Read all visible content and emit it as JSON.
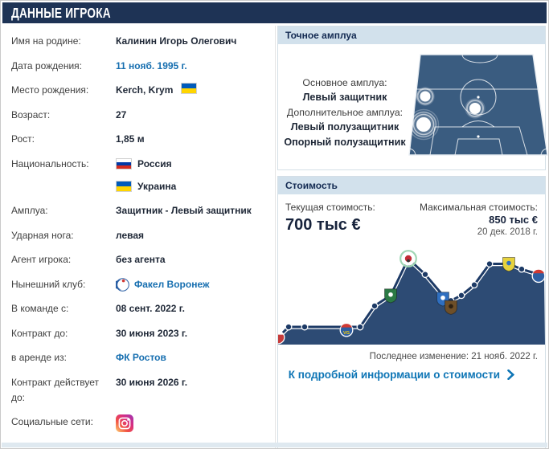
{
  "page": {
    "title": "Данные игрока"
  },
  "player_info": {
    "rows": [
      {
        "name": "name",
        "label": "Имя на родине:",
        "type": "text",
        "value": "Калинин Игорь Олегович"
      },
      {
        "name": "birth-date",
        "label": "Дата рождения:",
        "type": "link",
        "value": "11 нояб. 1995 г."
      },
      {
        "name": "birth-place",
        "label": "Место рождения:",
        "type": "place",
        "value": "Kerch, Krym",
        "flag": "ukraine"
      },
      {
        "name": "age",
        "label": "Возраст:",
        "type": "text",
        "value": "27"
      },
      {
        "name": "height",
        "label": "Рост:",
        "type": "text",
        "value": "1,85 м"
      },
      {
        "name": "nationality",
        "label": "Национальность:",
        "type": "nationality",
        "values": [
          {
            "flag": "russia",
            "name": "Россия"
          },
          {
            "flag": "ukraine",
            "name": "Украина"
          }
        ]
      },
      {
        "name": "position",
        "label": "Амплуа:",
        "type": "text",
        "value": "Защитник - Левый защитник"
      },
      {
        "name": "foot",
        "label": "Ударная нога:",
        "type": "text",
        "value": "левая"
      },
      {
        "name": "agent",
        "label": "Агент игрока:",
        "type": "text",
        "value": "без агента"
      },
      {
        "name": "current-club",
        "label": "Нынешний клуб:",
        "type": "club",
        "value": "Факел Воронеж"
      },
      {
        "name": "in-team-since",
        "label": "В команде с:",
        "type": "text",
        "value": "08 сент. 2022 г."
      },
      {
        "name": "contract-until",
        "label": "Контракт до:",
        "type": "text",
        "value": "30 июня 2023 г."
      },
      {
        "name": "loan-from",
        "label": "в аренде из:",
        "type": "link",
        "value": "ФК Ростов"
      },
      {
        "name": "contract-owner-until",
        "label": "Контракт действует до:",
        "type": "text",
        "value": "30 июня 2026 г."
      },
      {
        "name": "social",
        "label": "Социальные сети:",
        "type": "social",
        "icon": "instagram-icon"
      }
    ]
  },
  "position_box": {
    "title": "Точное амплуа",
    "main_label": "Основное амплуа:",
    "main_value": "Левый защитник",
    "secondary_label": "Дополнительное амплуа:",
    "secondary_values": [
      "Левый полузащитник",
      "Опорный полузащитник"
    ],
    "pitch_markers": [
      {
        "x": 21,
        "y": 54,
        "r": 6.5,
        "role": "Левый полузащитник",
        "emphasis": false
      },
      {
        "x": 83,
        "y": 69,
        "r": 7,
        "role": "Опорный полузащитник",
        "emphasis": false
      },
      {
        "x": 19,
        "y": 89,
        "r": 9,
        "role": "Левый защитник",
        "emphasis": true
      }
    ]
  },
  "value_box": {
    "title": "Стоимость",
    "current_label": "Текущая стоимость:",
    "current_value": "700 тыс €",
    "max_label": "Максимальная стоимость:",
    "max_value": "850 тыс €",
    "max_date": "20 дек. 2018 г.",
    "last_change": "Последнее изменение: 21 нояб. 2022 г.",
    "details_link": "К подробной информации о стоимости"
  },
  "chart_data": {
    "type": "area",
    "unit": "тыс €",
    "ylim": [
      0,
      900
    ],
    "grid": false,
    "x_axis_labels_visible": false,
    "current_value_thousand_eur": 700,
    "max_value_thousand_eur": 850,
    "max_value_date": "20 дек. 2018 г.",
    "last_change_date": "21 нояб. 2022 г.",
    "points": [
      {
        "x": 0,
        "value": 100,
        "marker": {
          "kind": "club-logo",
          "style": "round-clipped",
          "colors": [
            "#c63b3b",
            "#ffffff"
          ]
        }
      },
      {
        "x": 13,
        "value": 200
      },
      {
        "x": 33,
        "value": 200
      },
      {
        "x": 85,
        "value": 200,
        "marker": {
          "kind": "club-logo",
          "style": "round",
          "colors": [
            "#2e5fa3",
            "#d03a34"
          ],
          "text": "VG",
          "text_color": "#ffd400",
          "dy": 4
        }
      },
      {
        "x": 102,
        "value": 200
      },
      {
        "x": 120,
        "value": 400
      },
      {
        "x": 140,
        "value": 500,
        "marker": {
          "kind": "club-logo",
          "style": "shield",
          "colors": [
            "#2b7a45",
            "#ffffff"
          ]
        }
      },
      {
        "x": 162,
        "value": 850,
        "marker": {
          "kind": "club-logo",
          "style": "round",
          "colors": [
            "#ffffff",
            "#c22b35"
          ],
          "ring": "#9fd6b4"
        }
      },
      {
        "x": 183,
        "value": 700
      },
      {
        "x": 205,
        "value": 500,
        "marker": {
          "kind": "club-logo",
          "style": "shield",
          "colors": [
            "#2f6fc0",
            "#ffffff"
          ],
          "dy": 4
        }
      },
      {
        "x": 215,
        "value": 450,
        "marker": {
          "kind": "club-logo",
          "style": "shield",
          "colors": [
            "#6e4f28",
            "#2e2112"
          ],
          "dy": 8
        }
      },
      {
        "x": 228,
        "value": 500
      },
      {
        "x": 244,
        "value": 600
      },
      {
        "x": 263,
        "value": 800
      },
      {
        "x": 287,
        "value": 800,
        "marker": {
          "kind": "club-logo",
          "style": "shield",
          "colors": [
            "#e6d23c",
            "#2f6fc0"
          ]
        }
      },
      {
        "x": 303,
        "value": 750
      },
      {
        "x": 324,
        "value": 700,
        "marker": {
          "kind": "club-logo",
          "style": "round",
          "colors": [
            "#2e5fa3",
            "#d03a34"
          ],
          "dy": 2
        }
      },
      {
        "x": 331,
        "value": 690
      }
    ]
  },
  "colors": {
    "accent_navy": "#1e3355",
    "box_header_bg": "#d2e1ec",
    "link_blue": "#176fb0",
    "chart_fill": "#2d4b74",
    "chart_line": "#1d3a66",
    "pitch_fill": "#3a5c80",
    "flags": {
      "russia": [
        "#ffffff",
        "#0039a6",
        "#d52b1e"
      ],
      "ukraine": [
        "#005bbb",
        "#ffd500"
      ]
    }
  }
}
